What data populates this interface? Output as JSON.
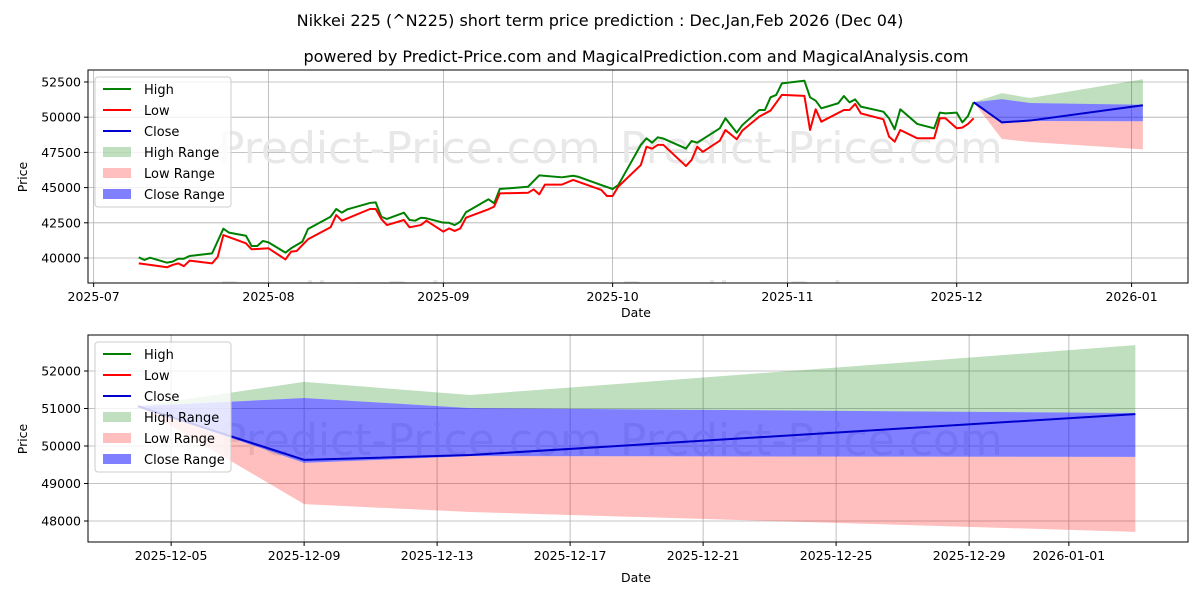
{
  "title": "Nikkei 225 (^N225) short term price prediction : Dec,Jan,Feb 2026 (Dec 04)",
  "subtitle": "powered by Predict-Price.com and MagicalPrediction.com and MagicalAnalysis.com",
  "watermark": "Predict-Price.com",
  "colors": {
    "high": "#008000",
    "low": "#ff0000",
    "close": "#0000cd",
    "high_range": "#008000",
    "low_range": "#ff0000",
    "close_range": "#0000ff"
  },
  "legend": [
    "High",
    "Low",
    "Close",
    "High Range",
    "Low Range",
    "Close Range"
  ],
  "chart_data": [
    {
      "type": "line",
      "title": "",
      "xlabel": "Date",
      "ylabel": "Price",
      "xlim": [
        "2025-06-30",
        "2026-01-11"
      ],
      "ylim": [
        38225,
        53350
      ],
      "grid": true,
      "legend_position": "top-left",
      "xticks": [
        "2025-07",
        "2025-08",
        "2025-09",
        "2025-10",
        "2025-11",
        "2025-12",
        "2026-01"
      ],
      "yticks": [
        40000,
        42500,
        45000,
        47500,
        50000,
        52500
      ],
      "series": [
        {
          "name": "High",
          "points": [
            [
              "2025-07-09",
              40050
            ],
            [
              "2025-07-10",
              39860
            ],
            [
              "2025-07-11",
              40020
            ],
            [
              "2025-07-14",
              39670
            ],
            [
              "2025-07-15",
              39740
            ],
            [
              "2025-07-16",
              39950
            ],
            [
              "2025-07-17",
              39950
            ],
            [
              "2025-07-18",
              40140
            ],
            [
              "2025-07-22",
              40330
            ],
            [
              "2025-07-24",
              42080
            ],
            [
              "2025-07-25",
              41800
            ],
            [
              "2025-07-28",
              41580
            ],
            [
              "2025-07-29",
              40850
            ],
            [
              "2025-07-30",
              40850
            ],
            [
              "2025-07-31",
              41210
            ],
            [
              "2025-08-01",
              41110
            ],
            [
              "2025-08-04",
              40380
            ],
            [
              "2025-08-05",
              40690
            ],
            [
              "2025-08-07",
              41160
            ],
            [
              "2025-08-08",
              42060
            ],
            [
              "2025-08-12",
              42930
            ],
            [
              "2025-08-13",
              43480
            ],
            [
              "2025-08-14",
              43220
            ],
            [
              "2025-08-15",
              43460
            ],
            [
              "2025-08-19",
              43910
            ],
            [
              "2025-08-20",
              43950
            ],
            [
              "2025-08-21",
              42930
            ],
            [
              "2025-08-22",
              42770
            ],
            [
              "2025-08-25",
              43220
            ],
            [
              "2025-08-26",
              42700
            ],
            [
              "2025-08-27",
              42650
            ],
            [
              "2025-08-28",
              42860
            ],
            [
              "2025-08-29",
              42820
            ],
            [
              "2025-09-01",
              42510
            ],
            [
              "2025-09-02",
              42500
            ],
            [
              "2025-09-03",
              42340
            ],
            [
              "2025-09-04",
              42580
            ],
            [
              "2025-09-05",
              43250
            ],
            [
              "2025-09-09",
              44170
            ],
            [
              "2025-09-10",
              43880
            ],
            [
              "2025-09-11",
              44900
            ],
            [
              "2025-09-16",
              45060
            ],
            [
              "2025-09-18",
              45870
            ],
            [
              "2025-09-22",
              45730
            ],
            [
              "2025-09-24",
              45840
            ],
            [
              "2025-09-25",
              45760
            ],
            [
              "2025-09-29",
              45180
            ],
            [
              "2025-10-01",
              44900
            ],
            [
              "2025-10-02",
              45180
            ],
            [
              "2025-10-06",
              48030
            ],
            [
              "2025-10-07",
              48500
            ],
            [
              "2025-10-08",
              48190
            ],
            [
              "2025-10-09",
              48570
            ],
            [
              "2025-10-10",
              48480
            ],
            [
              "2025-10-14",
              47770
            ],
            [
              "2025-10-15",
              48310
            ],
            [
              "2025-10-16",
              48190
            ],
            [
              "2025-10-20",
              49210
            ],
            [
              "2025-10-21",
              49920
            ],
            [
              "2025-10-23",
              48900
            ],
            [
              "2025-10-24",
              49440
            ],
            [
              "2025-10-27",
              50510
            ],
            [
              "2025-10-28",
              50510
            ],
            [
              "2025-10-29",
              51410
            ],
            [
              "2025-10-30",
              51580
            ],
            [
              "2025-10-31",
              52400
            ],
            [
              "2025-11-04",
              52590
            ],
            [
              "2025-11-05",
              51410
            ],
            [
              "2025-11-06",
              51170
            ],
            [
              "2025-11-07",
              50630
            ],
            [
              "2025-11-10",
              50990
            ],
            [
              "2025-11-11",
              51500
            ],
            [
              "2025-11-12",
              51050
            ],
            [
              "2025-11-13",
              51260
            ],
            [
              "2025-11-14",
              50750
            ],
            [
              "2025-11-18",
              50390
            ],
            [
              "2025-11-19",
              49920
            ],
            [
              "2025-11-20",
              49140
            ],
            [
              "2025-11-21",
              50560
            ],
            [
              "2025-11-24",
              49520
            ],
            [
              "2025-11-27",
              49210
            ],
            [
              "2025-11-28",
              50320
            ],
            [
              "2025-11-29",
              50270
            ],
            [
              "2025-12-01",
              50320
            ],
            [
              "2025-12-02",
              49630
            ],
            [
              "2025-12-03",
              50080
            ],
            [
              "2025-12-04",
              51060
            ]
          ]
        },
        {
          "name": "Low",
          "points": [
            [
              "2025-07-09",
              39620
            ],
            [
              "2025-07-11",
              39510
            ],
            [
              "2025-07-14",
              39340
            ],
            [
              "2025-07-15",
              39510
            ],
            [
              "2025-07-16",
              39620
            ],
            [
              "2025-07-17",
              39420
            ],
            [
              "2025-07-18",
              39810
            ],
            [
              "2025-07-22",
              39620
            ],
            [
              "2025-07-23",
              40090
            ],
            [
              "2025-07-24",
              41630
            ],
            [
              "2025-07-28",
              41040
            ],
            [
              "2025-07-29",
              40620
            ],
            [
              "2025-07-30",
              40640
            ],
            [
              "2025-08-01",
              40690
            ],
            [
              "2025-08-04",
              39900
            ],
            [
              "2025-08-05",
              40450
            ],
            [
              "2025-08-06",
              40500
            ],
            [
              "2025-08-08",
              41330
            ],
            [
              "2025-08-12",
              42180
            ],
            [
              "2025-08-13",
              43050
            ],
            [
              "2025-08-14",
              42650
            ],
            [
              "2025-08-19",
              43480
            ],
            [
              "2025-08-20",
              43480
            ],
            [
              "2025-08-21",
              42770
            ],
            [
              "2025-08-22",
              42340
            ],
            [
              "2025-08-25",
              42700
            ],
            [
              "2025-08-26",
              42180
            ],
            [
              "2025-08-28",
              42340
            ],
            [
              "2025-08-29",
              42650
            ],
            [
              "2025-09-01",
              41870
            ],
            [
              "2025-09-02",
              42100
            ],
            [
              "2025-09-03",
              41920
            ],
            [
              "2025-09-04",
              42100
            ],
            [
              "2025-09-05",
              42860
            ],
            [
              "2025-09-09",
              43460
            ],
            [
              "2025-09-10",
              43650
            ],
            [
              "2025-09-11",
              44590
            ],
            [
              "2025-09-16",
              44630
            ],
            [
              "2025-09-17",
              44870
            ],
            [
              "2025-09-18",
              44520
            ],
            [
              "2025-09-19",
              45210
            ],
            [
              "2025-09-22",
              45210
            ],
            [
              "2025-09-24",
              45540
            ],
            [
              "2025-09-29",
              44830
            ],
            [
              "2025-09-30",
              44400
            ],
            [
              "2025-10-01",
              44400
            ],
            [
              "2025-10-02",
              45070
            ],
            [
              "2025-10-06",
              46600
            ],
            [
              "2025-10-07",
              47900
            ],
            [
              "2025-10-08",
              47760
            ],
            [
              "2025-10-09",
              48030
            ],
            [
              "2025-10-10",
              48030
            ],
            [
              "2025-10-14",
              46530
            ],
            [
              "2025-10-15",
              46960
            ],
            [
              "2025-10-16",
              47900
            ],
            [
              "2025-10-17",
              47540
            ],
            [
              "2025-10-20",
              48330
            ],
            [
              "2025-10-21",
              49090
            ],
            [
              "2025-10-23",
              48430
            ],
            [
              "2025-10-24",
              49050
            ],
            [
              "2025-10-27",
              50040
            ],
            [
              "2025-10-29",
              50470
            ],
            [
              "2025-10-31",
              51580
            ],
            [
              "2025-11-04",
              51510
            ],
            [
              "2025-11-05",
              49090
            ],
            [
              "2025-11-06",
              50560
            ],
            [
              "2025-11-07",
              49680
            ],
            [
              "2025-11-11",
              50510
            ],
            [
              "2025-11-12",
              50510
            ],
            [
              "2025-11-13",
              50940
            ],
            [
              "2025-11-14",
              50270
            ],
            [
              "2025-11-18",
              49850
            ],
            [
              "2025-11-19",
              48620
            ],
            [
              "2025-11-20",
              48260
            ],
            [
              "2025-11-21",
              49090
            ],
            [
              "2025-11-24",
              48500
            ],
            [
              "2025-11-27",
              48500
            ],
            [
              "2025-11-28",
              49920
            ],
            [
              "2025-11-29",
              49920
            ],
            [
              "2025-12-01",
              49210
            ],
            [
              "2025-12-02",
              49260
            ],
            [
              "2025-12-03",
              49520
            ],
            [
              "2025-12-04",
              49920
            ]
          ]
        }
      ]
    },
    {
      "type": "area",
      "title": "",
      "xlabel": "Date",
      "ylabel": "Price",
      "xlim": [
        "2025-12-02T12:00",
        "2026-01-04T14:00"
      ],
      "ylim": [
        47440,
        52960
      ],
      "grid": true,
      "legend_position": "top-left",
      "xticks": [
        "2025-12-05",
        "2025-12-09",
        "2025-12-13",
        "2025-12-17",
        "2025-12-21",
        "2025-12-25",
        "2025-12-29",
        "2026-01-01"
      ],
      "yticks": [
        48000,
        49000,
        50000,
        51000,
        52000
      ]
    }
  ],
  "forecast": {
    "dates": [
      "2025-12-04",
      "2025-12-09",
      "2025-12-14",
      "2026-01-03"
    ],
    "close": [
      51060,
      49630,
      49760,
      50850
    ],
    "close_upper": [
      51060,
      51280,
      51010,
      50880
    ],
    "close_lower": [
      51060,
      49550,
      49730,
      49710
    ],
    "high_upper": [
      51060,
      51710,
      51360,
      52690
    ],
    "low_lower": [
      51060,
      48450,
      48240,
      47710
    ]
  }
}
